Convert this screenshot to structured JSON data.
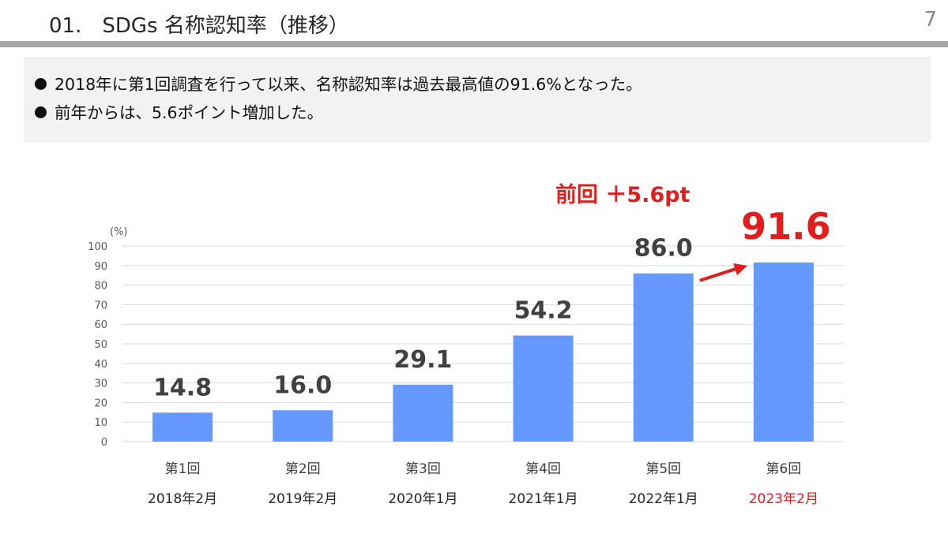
{
  "header": {
    "title": "01.　SDGs 名称認知率（推移）",
    "page_number": "7"
  },
  "summary": {
    "bullets": [
      "2018年に第1回調査を行って以来、名称認知率は過去最高値の91.6%となった。",
      "前年からは、5.6ポイント増加した。"
    ]
  },
  "callout": {
    "text": "前回 ＋5.6pt",
    "color": "#e51c1c"
  },
  "colors": {
    "bar": "#6699ff",
    "highlight": "#e51c1c",
    "text": "#404040",
    "grid": "#d9d9d9"
  },
  "chart_data": {
    "type": "bar",
    "unit_label": "(%)",
    "ylim": [
      0,
      100
    ],
    "yticks": [
      0,
      10,
      20,
      30,
      40,
      50,
      60,
      70,
      80,
      90,
      100
    ],
    "grid": true,
    "categories": [
      "第1回",
      "第2回",
      "第3回",
      "第4回",
      "第5回",
      "第6回"
    ],
    "dates": [
      "2018年2月",
      "2019年2月",
      "2020年1月",
      "2021年1月",
      "2022年1月",
      "2023年2月"
    ],
    "values": [
      14.8,
      16.0,
      29.1,
      54.2,
      86.0,
      91.6
    ],
    "data_labels": [
      "14.8",
      "16.0",
      "29.1",
      "54.2",
      "86.0",
      "91.6"
    ],
    "highlight_index": 5
  }
}
